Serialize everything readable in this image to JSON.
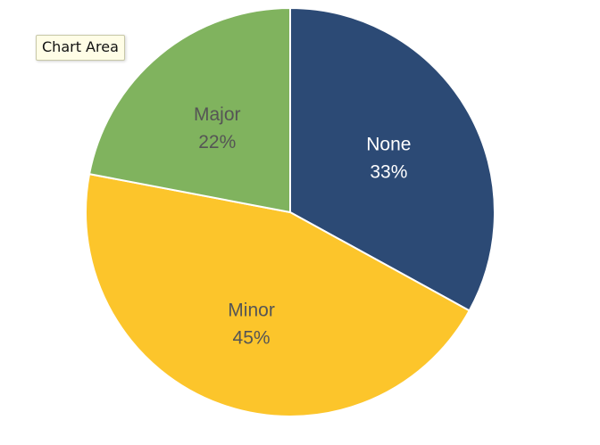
{
  "tooltip": {
    "text": "Chart Area"
  },
  "chart_data": {
    "type": "pie",
    "categories": [
      "None",
      "Minor",
      "Major"
    ],
    "values": [
      33,
      45,
      22
    ],
    "labels": [
      "33%",
      "45%",
      "22%"
    ],
    "colors": [
      "#2c4a75",
      "#fcc52b",
      "#80b35e"
    ],
    "label_colors": [
      "#ffffff",
      "#555555",
      "#555555"
    ],
    "slice_border_color": "#ffffff",
    "start": "12 o'clock",
    "direction": "clockwise",
    "title": "",
    "legend": "none"
  }
}
